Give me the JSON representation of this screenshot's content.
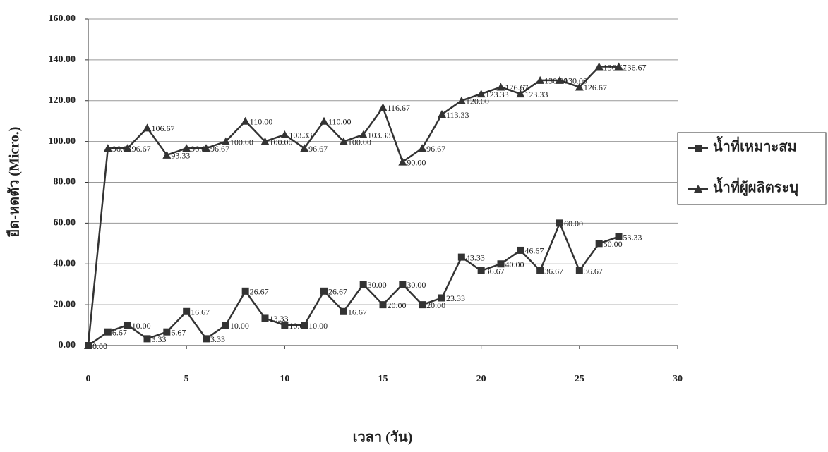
{
  "chart_data": {
    "type": "line",
    "x_label": "เวลา (วัน)",
    "y_label": "ยืด-หดตัว (Micro.)",
    "x": [
      0,
      1,
      2,
      3,
      4,
      5,
      6,
      7,
      8,
      9,
      10,
      11,
      12,
      13,
      14,
      15,
      16,
      17,
      18,
      19,
      20,
      21,
      22,
      23,
      24,
      25,
      26,
      27
    ],
    "series": [
      {
        "name": "น้ำที่เหมาะสม",
        "color": "#333333",
        "marker": "square",
        "values": [
          0,
          6.67,
          10,
          3.33,
          6.67,
          16.67,
          3.33,
          10,
          26.67,
          13.33,
          10,
          10,
          26.67,
          16.67,
          30,
          20,
          30,
          20,
          23.33,
          43.33,
          36.67,
          40,
          46.67,
          36.67,
          60,
          36.67,
          50,
          53.33
        ],
        "value_labels": [
          "0.00",
          "6.67",
          "10.00",
          "3.33",
          "6.67",
          "16.67",
          "3.33",
          "10.00",
          "26.67",
          "13.33",
          "10.00",
          "10.00",
          "26.67",
          "16.67",
          "30.00",
          "20.00",
          "30.00",
          "20.00",
          "23.33",
          "43.33",
          "36.67",
          "40.00",
          "46.67",
          "36.67",
          "60.00",
          "36.67",
          "50.00",
          "53.33"
        ]
      },
      {
        "name": "น้ำที่ผู้ผลิตระบุ",
        "color": "#333333",
        "marker": "triangle",
        "values": [
          0,
          96.67,
          96.67,
          106.67,
          93.33,
          96.67,
          96.67,
          100,
          110,
          100,
          103.33,
          96.67,
          110,
          100,
          103.33,
          116.67,
          90,
          96.67,
          113.33,
          120,
          123.33,
          126.67,
          123.33,
          130,
          130,
          126.67,
          136.67,
          136.67
        ],
        "value_labels": [
          "0.00",
          "96.67",
          "96.67",
          "106.67",
          "93.33",
          "96.67",
          "96.67",
          "100.00",
          "110.00",
          "100.00",
          "103.33",
          "96.67",
          "110.00",
          "100.00",
          "103.33",
          "116.67",
          "90.00",
          "96.67",
          "113.33",
          "120.00",
          "123.33",
          "126.67",
          "123.33",
          "130.00",
          "130.00",
          "126.67",
          "136.67",
          "136.67"
        ]
      }
    ],
    "xlim": [
      0,
      30
    ],
    "xticks": [
      0,
      5,
      10,
      15,
      20,
      25,
      30
    ],
    "ylim": [
      0,
      160
    ],
    "yticks": [
      {
        "value": 0,
        "label": "0.00"
      },
      {
        "value": 20,
        "label": "20.00"
      },
      {
        "value": 40,
        "label": "40.00"
      },
      {
        "value": 60,
        "label": "60.00"
      },
      {
        "value": 80,
        "label": "80.00"
      },
      {
        "value": 100,
        "label": "100.00"
      },
      {
        "value": 120,
        "label": "120.00"
      },
      {
        "value": 140,
        "label": "140.00"
      },
      {
        "value": 160,
        "label": "160.00"
      }
    ],
    "grid": true,
    "legend": "right"
  }
}
